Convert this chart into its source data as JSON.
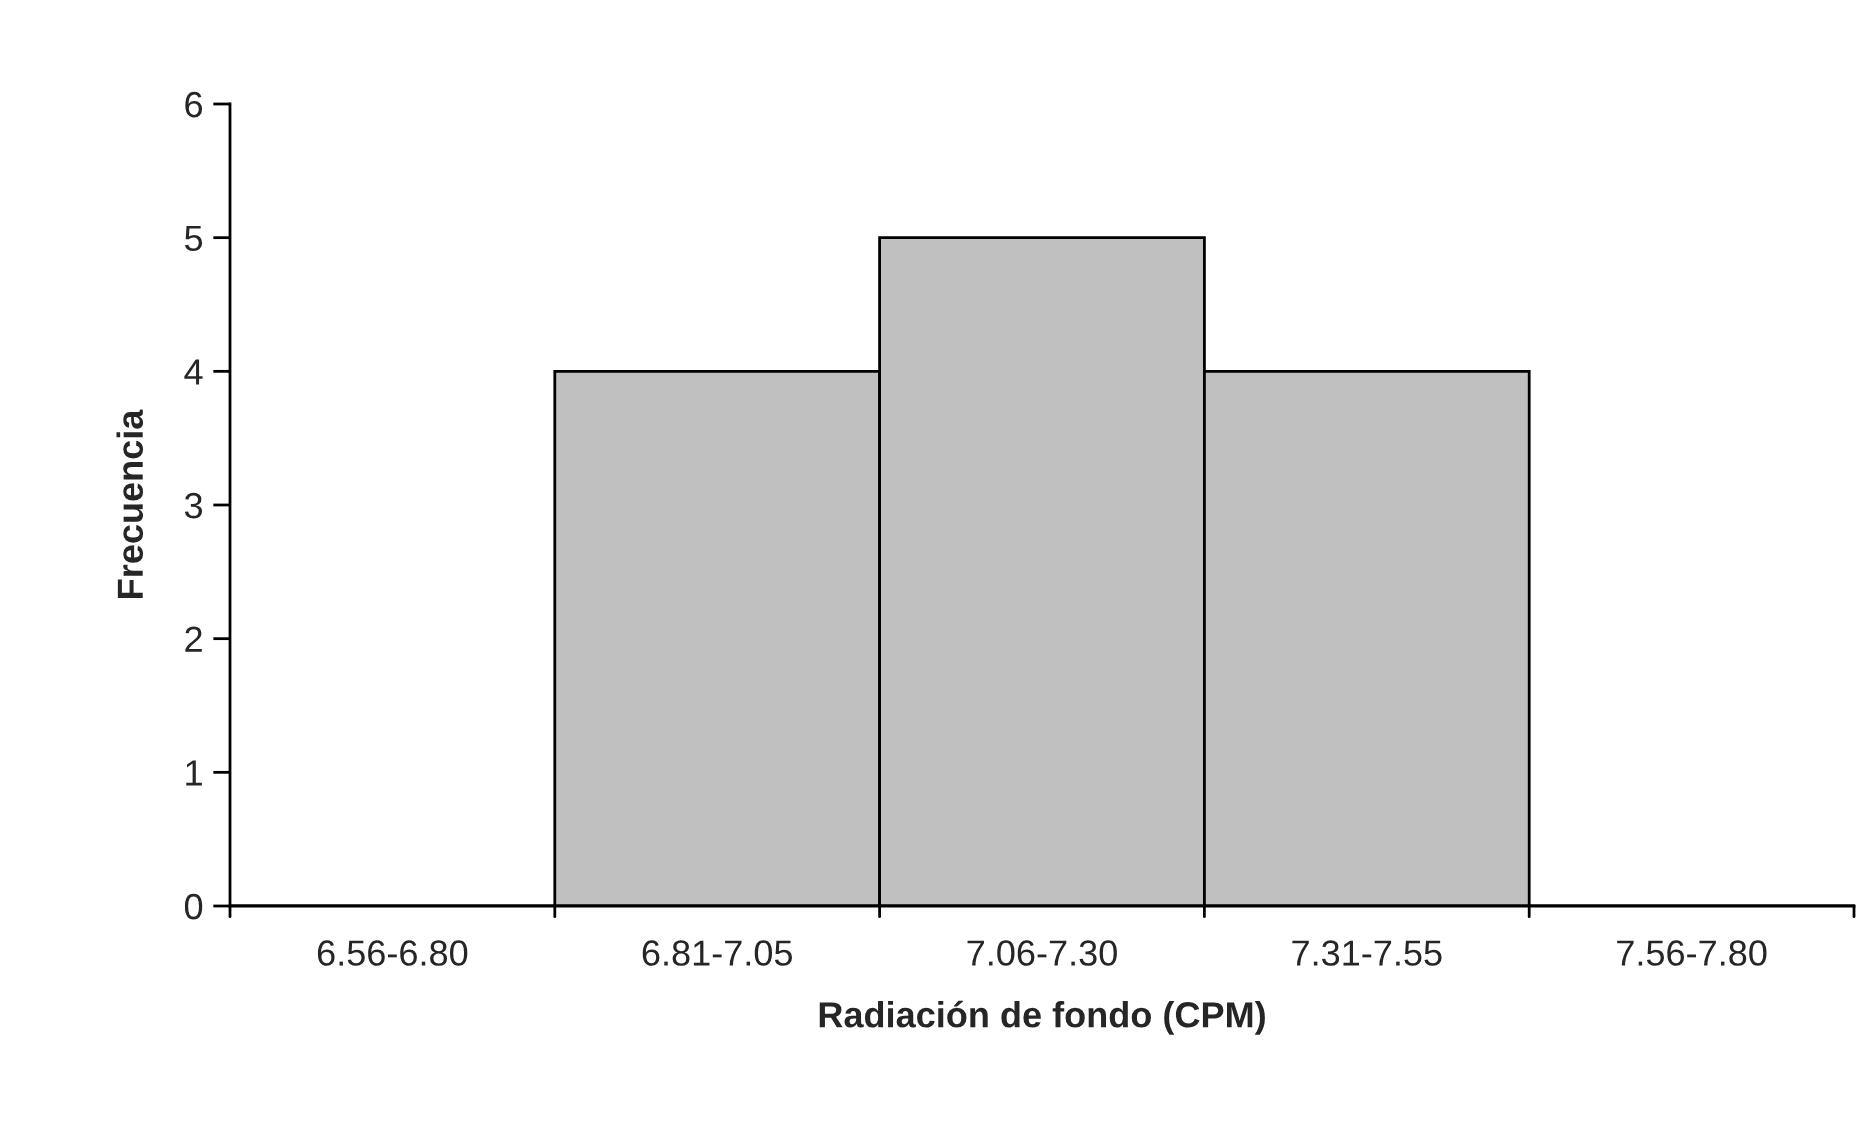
{
  "chart_data": {
    "type": "bar",
    "xlabel": "Radiación de fondo (CPM)",
    "ylabel": "Frecuencia",
    "categories": [
      "6.56-6.80",
      "6.81-7.05",
      "7.06-7.30",
      "7.31-7.55",
      "7.56-7.80"
    ],
    "values": [
      0,
      4,
      5,
      4,
      0
    ],
    "color": "#c0c0c0",
    "ylim": [
      0,
      6
    ],
    "yticks": [
      0,
      1,
      2,
      3,
      4,
      5,
      6
    ],
    "grid": false,
    "legend": false
  }
}
